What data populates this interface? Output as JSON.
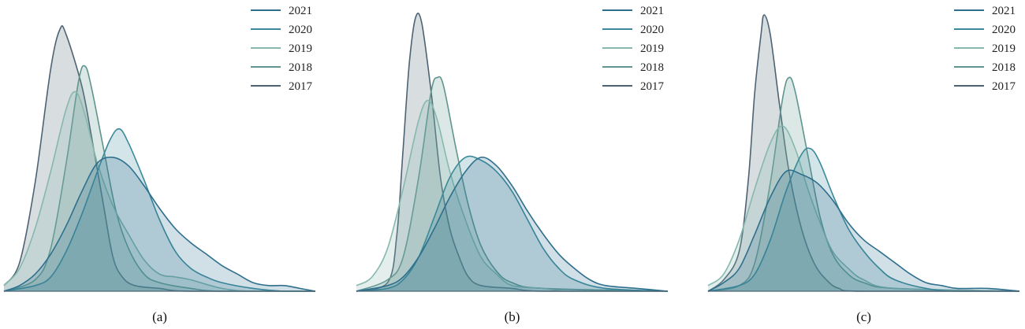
{
  "chart_data": [
    {
      "type": "area",
      "caption": "(a)",
      "title": "",
      "xlabel": "",
      "ylabel": "",
      "xlim": [
        0,
        100
      ],
      "ylim": [
        0,
        1
      ],
      "grid": false,
      "legend_position": "top-right",
      "series": [
        {
          "name": "2021",
          "color": "#2e6f8e",
          "points": [
            [
              0,
              0
            ],
            [
              5,
              0.02
            ],
            [
              10,
              0.06
            ],
            [
              15,
              0.13
            ],
            [
              20,
              0.23
            ],
            [
              25,
              0.35
            ],
            [
              30,
              0.45
            ],
            [
              35,
              0.47
            ],
            [
              40,
              0.44
            ],
            [
              45,
              0.37
            ],
            [
              50,
              0.29
            ],
            [
              55,
              0.22
            ],
            [
              60,
              0.17
            ],
            [
              65,
              0.13
            ],
            [
              70,
              0.09
            ],
            [
              75,
              0.06
            ],
            [
              80,
              0.03
            ],
            [
              85,
              0.02
            ],
            [
              90,
              0.02
            ],
            [
              95,
              0.01
            ],
            [
              100,
              0
            ]
          ]
        },
        {
          "name": "2020",
          "color": "#3a8a9a",
          "points": [
            [
              0,
              0
            ],
            [
              10,
              0.02
            ],
            [
              15,
              0.05
            ],
            [
              20,
              0.14
            ],
            [
              25,
              0.27
            ],
            [
              30,
              0.42
            ],
            [
              34,
              0.53
            ],
            [
              37,
              0.57
            ],
            [
              40,
              0.52
            ],
            [
              45,
              0.39
            ],
            [
              50,
              0.25
            ],
            [
              55,
              0.14
            ],
            [
              60,
              0.08
            ],
            [
              65,
              0.05
            ],
            [
              70,
              0.03
            ],
            [
              80,
              0.01
            ],
            [
              90,
              0
            ],
            [
              100,
              0
            ]
          ]
        },
        {
          "name": "2019",
          "color": "#86b8ad",
          "points": [
            [
              0,
              0.02
            ],
            [
              5,
              0.08
            ],
            [
              10,
              0.22
            ],
            [
              15,
              0.42
            ],
            [
              20,
              0.64
            ],
            [
              23,
              0.7
            ],
            [
              26,
              0.62
            ],
            [
              30,
              0.45
            ],
            [
              35,
              0.3
            ],
            [
              40,
              0.2
            ],
            [
              45,
              0.11
            ],
            [
              50,
              0.06
            ],
            [
              55,
              0.05
            ],
            [
              60,
              0.04
            ],
            [
              70,
              0.01
            ],
            [
              80,
              0
            ],
            [
              100,
              0
            ]
          ]
        },
        {
          "name": "2018",
          "color": "#5f958e",
          "points": [
            [
              0,
              0
            ],
            [
              10,
              0.04
            ],
            [
              15,
              0.15
            ],
            [
              20,
              0.45
            ],
            [
              24,
              0.74
            ],
            [
              26,
              0.79
            ],
            [
              28,
              0.72
            ],
            [
              32,
              0.5
            ],
            [
              36,
              0.28
            ],
            [
              40,
              0.15
            ],
            [
              45,
              0.06
            ],
            [
              50,
              0.03
            ],
            [
              60,
              0.01
            ],
            [
              70,
              0
            ],
            [
              100,
              0
            ]
          ]
        },
        {
          "name": "2017",
          "color": "#4d6374",
          "points": [
            [
              0,
              0.02
            ],
            [
              5,
              0.1
            ],
            [
              10,
              0.38
            ],
            [
              15,
              0.78
            ],
            [
              18,
              0.92
            ],
            [
              20,
              0.9
            ],
            [
              25,
              0.72
            ],
            [
              28,
              0.55
            ],
            [
              32,
              0.3
            ],
            [
              35,
              0.12
            ],
            [
              38,
              0.05
            ],
            [
              42,
              0.02
            ],
            [
              50,
              0.01
            ],
            [
              60,
              0
            ],
            [
              100,
              0
            ]
          ]
        }
      ]
    },
    {
      "type": "area",
      "caption": "(b)",
      "title": "",
      "xlabel": "",
      "ylabel": "",
      "xlim": [
        0,
        100
      ],
      "ylim": [
        0,
        1
      ],
      "grid": false,
      "legend_position": "top-right",
      "series": [
        {
          "name": "2021",
          "color": "#2e6f8e",
          "points": [
            [
              0,
              0
            ],
            [
              10,
              0.02
            ],
            [
              15,
              0.05
            ],
            [
              20,
              0.12
            ],
            [
              25,
              0.22
            ],
            [
              30,
              0.33
            ],
            [
              35,
              0.42
            ],
            [
              40,
              0.47
            ],
            [
              45,
              0.44
            ],
            [
              50,
              0.37
            ],
            [
              55,
              0.28
            ],
            [
              60,
              0.2
            ],
            [
              65,
              0.13
            ],
            [
              70,
              0.08
            ],
            [
              75,
              0.04
            ],
            [
              80,
              0.02
            ],
            [
              90,
              0.01
            ],
            [
              100,
              0
            ]
          ]
        },
        {
          "name": "2020",
          "color": "#3a8a9a",
          "points": [
            [
              0,
              0
            ],
            [
              10,
              0.01
            ],
            [
              15,
              0.04
            ],
            [
              20,
              0.12
            ],
            [
              25,
              0.26
            ],
            [
              30,
              0.4
            ],
            [
              35,
              0.47
            ],
            [
              40,
              0.46
            ],
            [
              45,
              0.42
            ],
            [
              50,
              0.35
            ],
            [
              55,
              0.25
            ],
            [
              60,
              0.15
            ],
            [
              65,
              0.08
            ],
            [
              70,
              0.04
            ],
            [
              80,
              0.01
            ],
            [
              100,
              0
            ]
          ]
        },
        {
          "name": "2019",
          "color": "#86b8ad",
          "points": [
            [
              0,
              0.02
            ],
            [
              5,
              0.05
            ],
            [
              10,
              0.15
            ],
            [
              15,
              0.36
            ],
            [
              20,
              0.6
            ],
            [
              23,
              0.67
            ],
            [
              26,
              0.6
            ],
            [
              30,
              0.42
            ],
            [
              35,
              0.25
            ],
            [
              40,
              0.12
            ],
            [
              45,
              0.06
            ],
            [
              50,
              0.02
            ],
            [
              60,
              0.01
            ],
            [
              70,
              0
            ],
            [
              100,
              0
            ]
          ]
        },
        {
          "name": "2018",
          "color": "#5f958e",
          "points": [
            [
              0,
              0
            ],
            [
              10,
              0.04
            ],
            [
              15,
              0.12
            ],
            [
              20,
              0.4
            ],
            [
              24,
              0.7
            ],
            [
              26,
              0.75
            ],
            [
              28,
              0.72
            ],
            [
              32,
              0.5
            ],
            [
              36,
              0.3
            ],
            [
              40,
              0.16
            ],
            [
              45,
              0.07
            ],
            [
              50,
              0.03
            ],
            [
              60,
              0.01
            ],
            [
              100,
              0
            ]
          ]
        },
        {
          "name": "2017",
          "color": "#4d6374",
          "points": [
            [
              0,
              0
            ],
            [
              10,
              0.03
            ],
            [
              13,
              0.2
            ],
            [
              15,
              0.5
            ],
            [
              17,
              0.8
            ],
            [
              19,
              0.96
            ],
            [
              21,
              0.94
            ],
            [
              24,
              0.7
            ],
            [
              27,
              0.4
            ],
            [
              30,
              0.22
            ],
            [
              33,
              0.12
            ],
            [
              36,
              0.05
            ],
            [
              40,
              0.02
            ],
            [
              50,
              0.01
            ],
            [
              60,
              0
            ],
            [
              100,
              0
            ]
          ]
        }
      ]
    },
    {
      "type": "area",
      "caption": "(c)",
      "title": "",
      "xlabel": "",
      "ylabel": "",
      "xlim": [
        0,
        100
      ],
      "ylim": [
        0,
        1
      ],
      "grid": false,
      "legend_position": "top-right",
      "series": [
        {
          "name": "2021",
          "color": "#2e6f8e",
          "points": [
            [
              0,
              0
            ],
            [
              5,
              0.03
            ],
            [
              10,
              0.08
            ],
            [
              15,
              0.2
            ],
            [
              20,
              0.33
            ],
            [
              25,
              0.42
            ],
            [
              30,
              0.41
            ],
            [
              35,
              0.38
            ],
            [
              40,
              0.32
            ],
            [
              45,
              0.24
            ],
            [
              50,
              0.18
            ],
            [
              55,
              0.14
            ],
            [
              60,
              0.1
            ],
            [
              65,
              0.06
            ],
            [
              70,
              0.03
            ],
            [
              75,
              0.02
            ],
            [
              80,
              0.01
            ],
            [
              90,
              0.01
            ],
            [
              100,
              0
            ]
          ]
        },
        {
          "name": "2020",
          "color": "#3a8a9a",
          "points": [
            [
              0,
              0
            ],
            [
              10,
              0.02
            ],
            [
              15,
              0.06
            ],
            [
              20,
              0.18
            ],
            [
              25,
              0.35
            ],
            [
              30,
              0.48
            ],
            [
              33,
              0.5
            ],
            [
              36,
              0.45
            ],
            [
              40,
              0.34
            ],
            [
              45,
              0.22
            ],
            [
              50,
              0.14
            ],
            [
              55,
              0.08
            ],
            [
              60,
              0.04
            ],
            [
              70,
              0.01
            ],
            [
              80,
              0
            ],
            [
              100,
              0
            ]
          ]
        },
        {
          "name": "2019",
          "color": "#86b8ad",
          "points": [
            [
              0,
              0.02
            ],
            [
              5,
              0.06
            ],
            [
              10,
              0.18
            ],
            [
              15,
              0.36
            ],
            [
              20,
              0.52
            ],
            [
              24,
              0.58
            ],
            [
              28,
              0.5
            ],
            [
              32,
              0.36
            ],
            [
              36,
              0.24
            ],
            [
              40,
              0.14
            ],
            [
              45,
              0.08
            ],
            [
              50,
              0.04
            ],
            [
              60,
              0.01
            ],
            [
              100,
              0
            ]
          ]
        },
        {
          "name": "2018",
          "color": "#5f958e",
          "points": [
            [
              0,
              0
            ],
            [
              10,
              0.02
            ],
            [
              15,
              0.1
            ],
            [
              20,
              0.38
            ],
            [
              24,
              0.68
            ],
            [
              26,
              0.75
            ],
            [
              28,
              0.7
            ],
            [
              32,
              0.48
            ],
            [
              36,
              0.26
            ],
            [
              40,
              0.13
            ],
            [
              45,
              0.06
            ],
            [
              50,
              0.03
            ],
            [
              60,
              0.01
            ],
            [
              100,
              0
            ]
          ]
        },
        {
          "name": "2017",
          "color": "#4d6374",
          "points": [
            [
              0,
              0
            ],
            [
              5,
              0.04
            ],
            [
              10,
              0.14
            ],
            [
              13,
              0.4
            ],
            [
              15,
              0.7
            ],
            [
              17,
              0.9
            ],
            [
              18,
              0.97
            ],
            [
              20,
              0.9
            ],
            [
              23,
              0.65
            ],
            [
              26,
              0.42
            ],
            [
              30,
              0.22
            ],
            [
              34,
              0.1
            ],
            [
              38,
              0.04
            ],
            [
              42,
              0.01
            ],
            [
              50,
              0
            ],
            [
              100,
              0
            ]
          ]
        }
      ]
    }
  ]
}
